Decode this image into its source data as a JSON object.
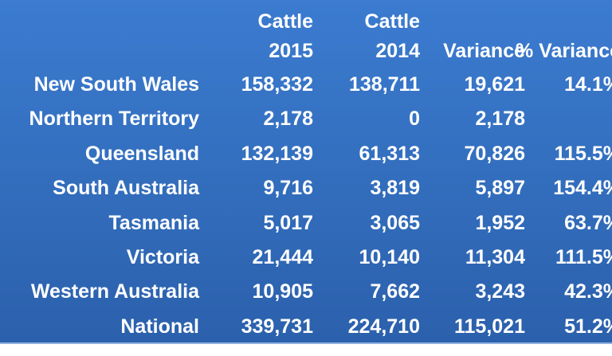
{
  "table": {
    "header": [
      [
        "Cattle",
        "2015"
      ],
      [
        "Cattle",
        "2014"
      ],
      [
        "Variance"
      ],
      [
        "% Variance"
      ]
    ],
    "rows": [
      [
        "New South Wales",
        "158,332",
        "138,711",
        "19,621",
        "14.1%"
      ],
      [
        "Northern Territory",
        "2,178",
        "0",
        "2,178",
        "-"
      ],
      [
        "Queensland",
        "132,139",
        "61,313",
        "70,826",
        "115.5%"
      ],
      [
        "South Australia",
        "9,716",
        "3,819",
        "5,897",
        "154.4%"
      ],
      [
        "Tasmania",
        "5,017",
        "3,065",
        "1,952",
        "63.7%"
      ],
      [
        "Victoria",
        "21,444",
        "10,140",
        "11,304",
        "111.5%"
      ],
      [
        "Western Australia",
        "10,905",
        "7,662",
        "3,243",
        "42.3%"
      ],
      [
        "National",
        "339,731",
        "224,710",
        "115,021",
        "51.2%"
      ]
    ]
  }
}
